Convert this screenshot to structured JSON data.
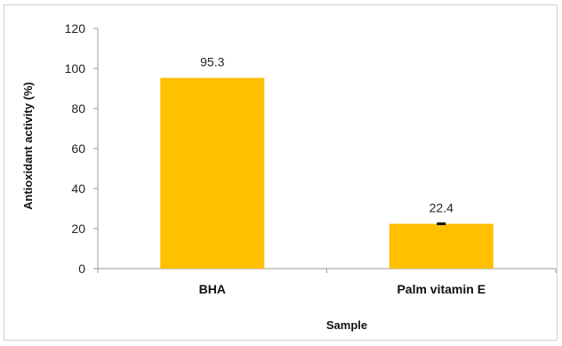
{
  "chart_data": {
    "type": "bar",
    "title": "",
    "xlabel": "Sample",
    "ylabel": "Antioxidant activity (%)",
    "ylim": [
      0,
      120
    ],
    "yticks": [
      0,
      20,
      40,
      60,
      80,
      100,
      120
    ],
    "categories": [
      "BHA",
      "Palm vitamin E"
    ],
    "values": [
      95.3,
      22.4
    ],
    "data_labels": [
      "95.3",
      "22.4"
    ],
    "error_bars": [
      0,
      0.5
    ],
    "bar_color": "#ffc000",
    "grid": false,
    "legend": "none"
  }
}
